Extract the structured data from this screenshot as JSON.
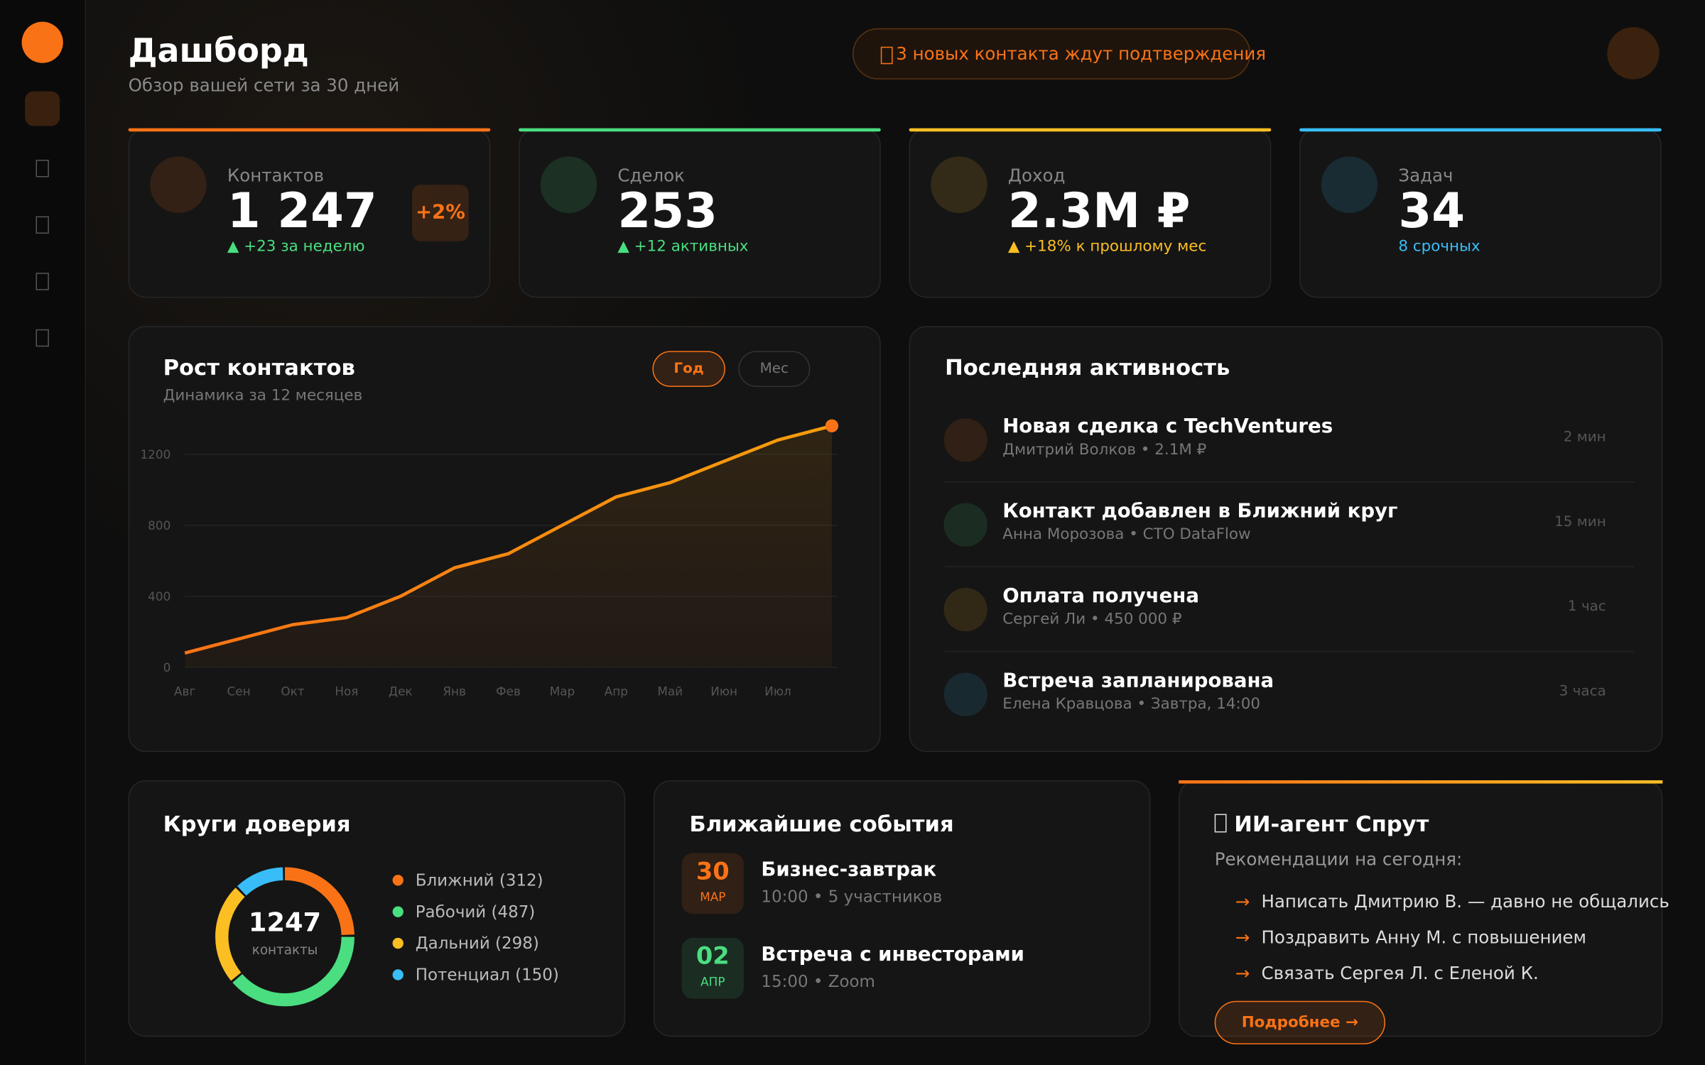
{
  "header": {
    "title": "Дашборд",
    "subtitle": "Обзор вашей сети за 30 дней",
    "notification": "3 новых контакта ждут подтверждения"
  },
  "kpis": [
    {
      "label": "Контактов",
      "value": "1 247",
      "change": "▲ +23 за неделю",
      "badge": "+2%",
      "color": "#f97316",
      "change_color": "#4ade80"
    },
    {
      "label": "Сделок",
      "value": "253",
      "change": "▲ +12 активных",
      "color": "#4ade80",
      "change_color": "#4ade80"
    },
    {
      "label": "Доход",
      "value": "2.3M ₽",
      "change": "▲ +18% к прошлому мес",
      "color": "#fbbf24",
      "change_color": "#fbbf24"
    },
    {
      "label": "Задач",
      "value": "34",
      "change": "8 срочных",
      "color": "#38bdf8",
      "change_color": "#38bdf8"
    }
  ],
  "growth": {
    "title": "Рост контактов",
    "subtitle": "Динамика за 12 месяцев",
    "toggle": [
      "Год",
      "Мес"
    ]
  },
  "activity": {
    "title": "Последняя активность",
    "items": [
      {
        "title": "Новая сделка с TechVentures",
        "subtitle": "Дмитрий Волков • 2.1M ₽",
        "time": "2 мин",
        "color": "#f97316"
      },
      {
        "title": "Контакт добавлен в Ближний круг",
        "subtitle": "Анна Морозова • CTO DataFlow",
        "time": "15 мин",
        "color": "#4ade80"
      },
      {
        "title": "Оплата получена",
        "subtitle": "Сергей Ли • 450 000 ₽",
        "time": "1 час",
        "color": "#fbbf24"
      },
      {
        "title": "Встреча запланирована",
        "subtitle": "Елена Кравцова • Завтра, 14:00",
        "time": "3 часа",
        "color": "#38bdf8"
      }
    ]
  },
  "circles": {
    "title": "Круги доверия"
  },
  "events": {
    "title": "Ближайшие события",
    "items": [
      {
        "day": "30",
        "month": "МАР",
        "title": "Бизнес-завтрак",
        "subtitle": "10:00 • 5 участников",
        "color": "#f97316"
      },
      {
        "day": "02",
        "month": "АПР",
        "title": "Встреча с инвесторами",
        "subtitle": "15:00 • Zoom",
        "color": "#4ade80"
      }
    ]
  },
  "ai": {
    "title": "ИИ-агент Спрут",
    "subtitle": "Рекомендации на сегодня:",
    "bullet": "→",
    "items": [
      "Написать Дмитрию В. — давно не общались",
      "Поздравить Анну М. с повышением",
      "Связать Сергея Л. с Еленой К."
    ],
    "button": "Подробнее →"
  },
  "chart_data": [
    {
      "type": "line",
      "categories": [
        "Авг",
        "Сен",
        "Окт",
        "Ноя",
        "Дек",
        "Янв",
        "Фев",
        "Мар",
        "Апр",
        "Май",
        "Июн",
        "Июл",
        null
      ],
      "values": [
        80,
        160,
        240,
        280,
        400,
        560,
        640,
        800,
        960,
        1040,
        1160,
        1280,
        1360
      ],
      "color": "#f59e0b",
      "ylim": [
        0,
        1400
      ],
      "yticks": [
        0,
        400,
        800,
        1200
      ],
      "grid": true
    },
    {
      "type": "donut",
      "categories": [
        "Ближний (312)",
        "Рабочий (487)",
        "Дальний (298)",
        "Потенциал (150)"
      ],
      "values": [
        312,
        487,
        298,
        150
      ],
      "colors": [
        "#f97316",
        "#4ade80",
        "#fbbf24",
        "#38bdf8"
      ],
      "center_value": 1247,
      "center_label": "контакты"
    }
  ]
}
